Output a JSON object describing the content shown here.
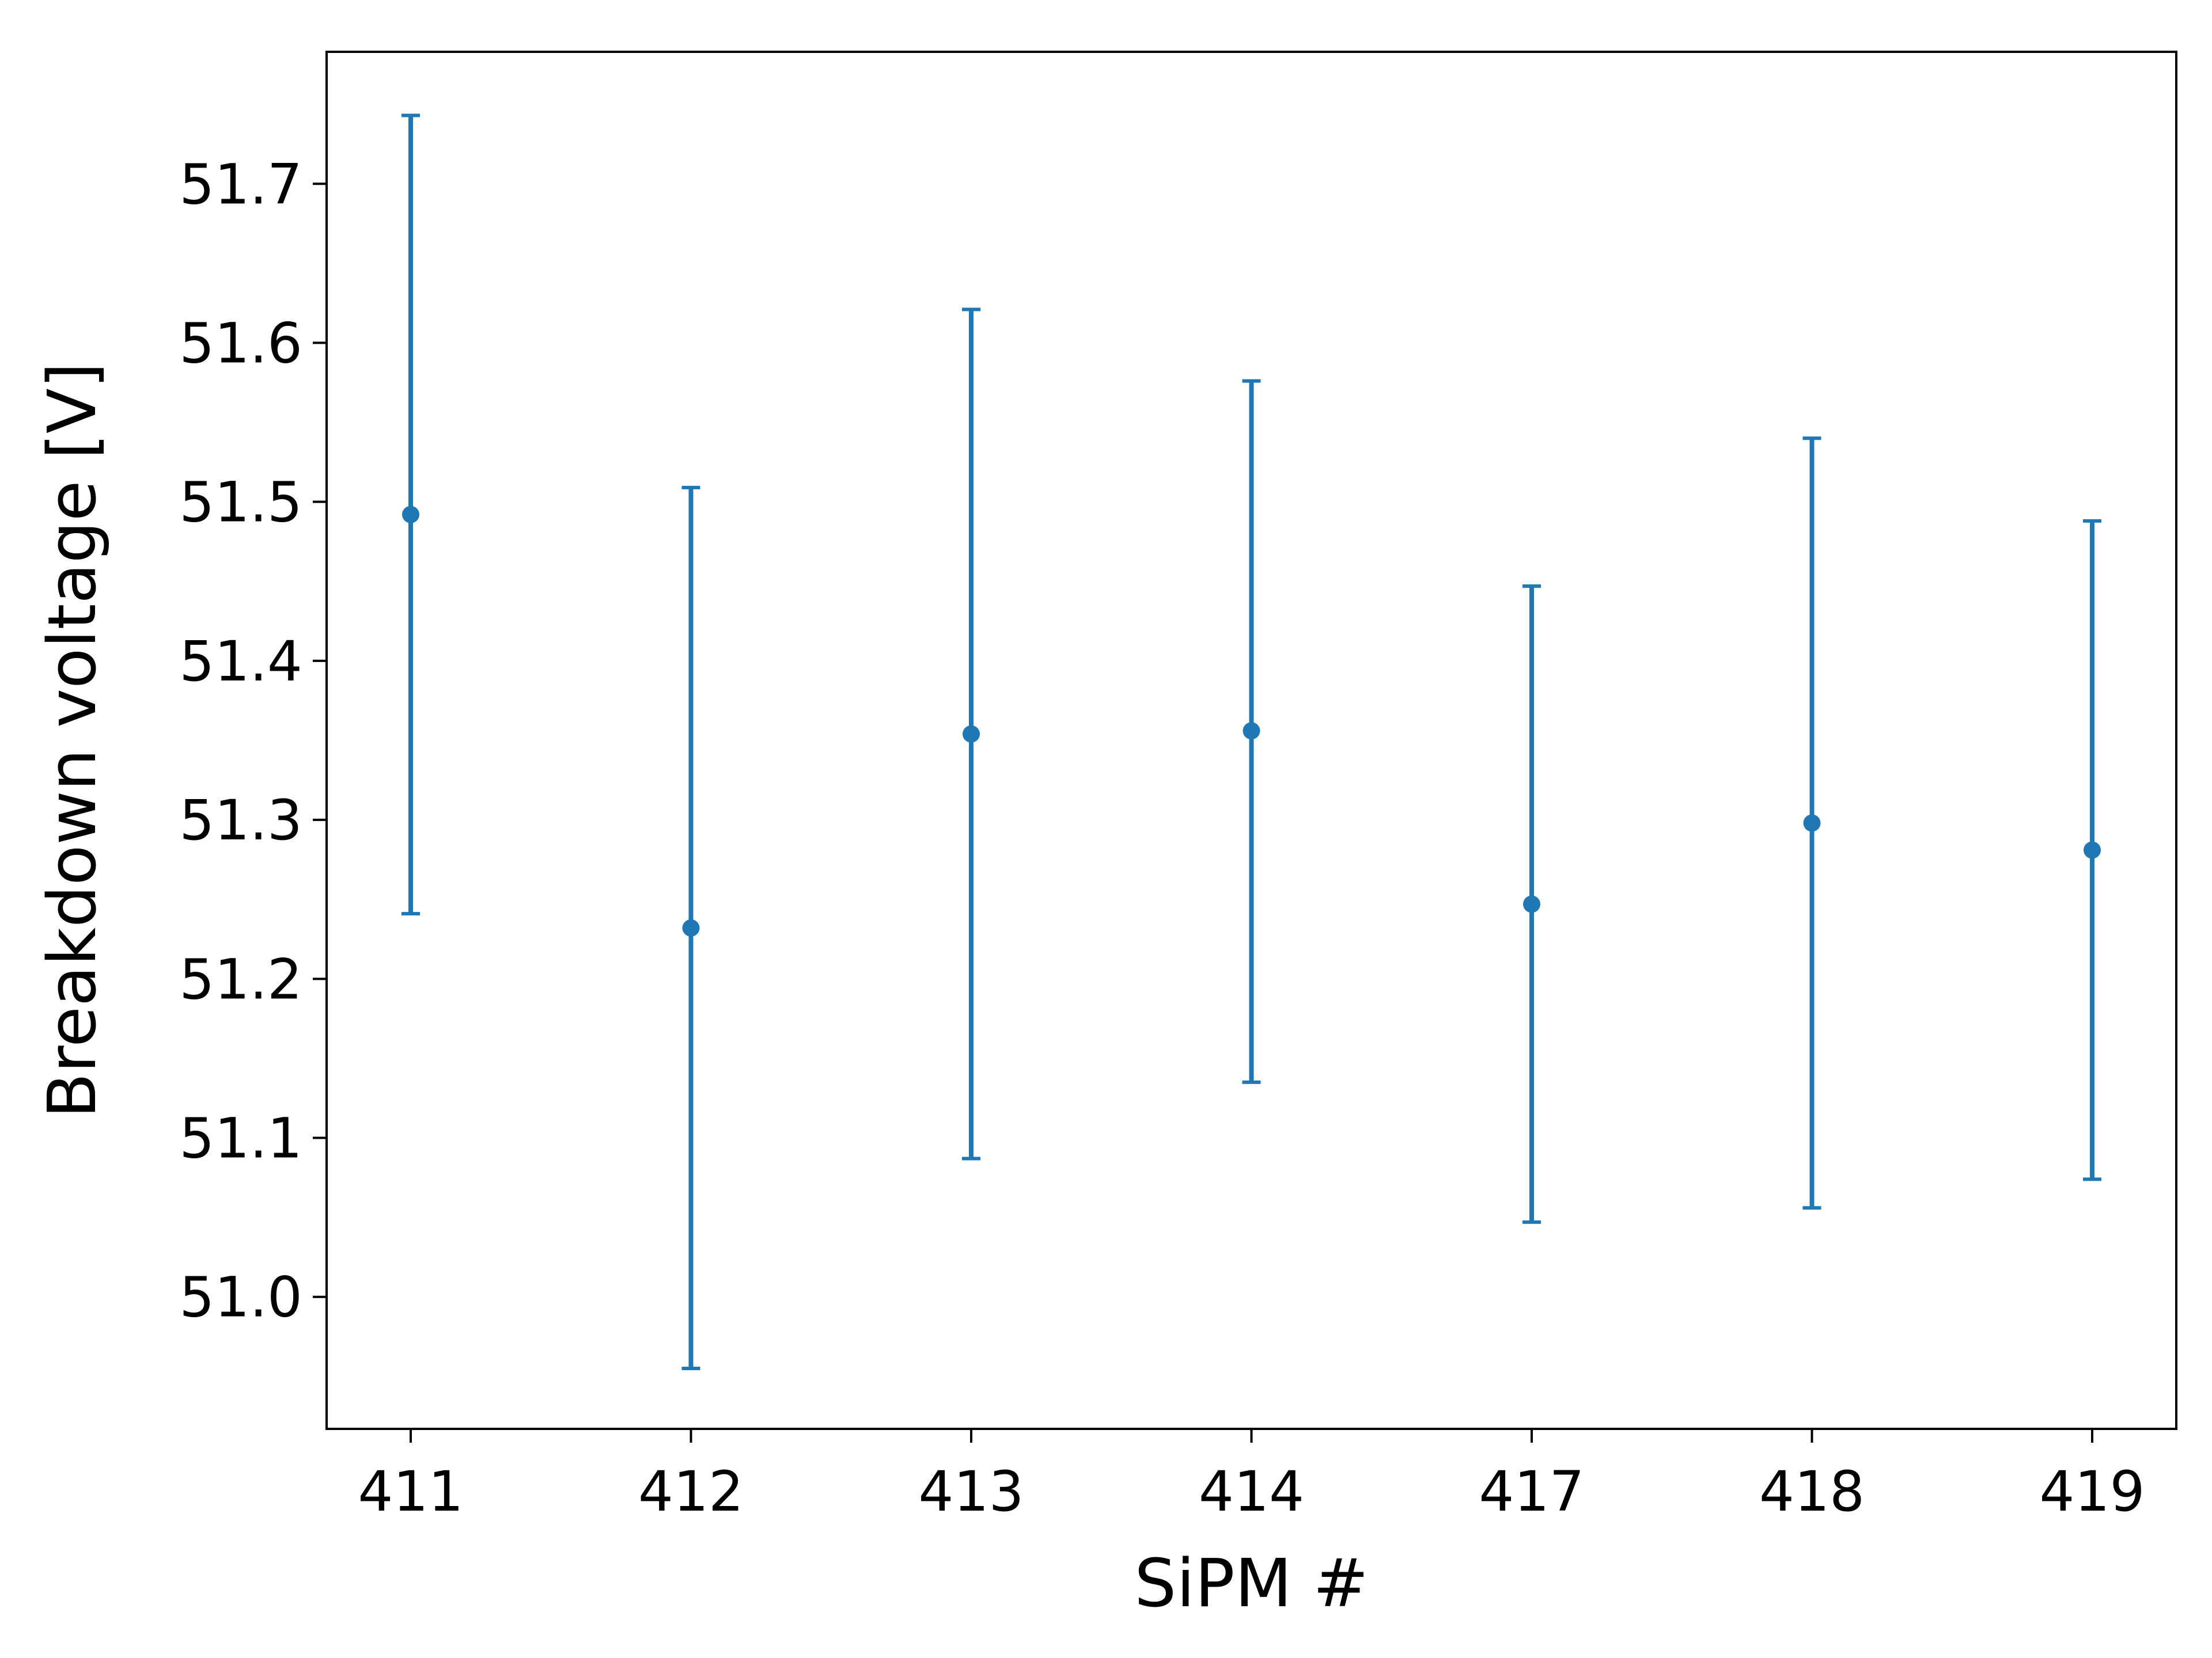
{
  "chart_data": {
    "type": "scatter",
    "title": "",
    "xlabel": "SiPM #",
    "ylabel": "Breakdown voltage [V]",
    "categories": [
      "411",
      "412",
      "413",
      "414",
      "417",
      "418",
      "419"
    ],
    "series": [
      {
        "values": [
          51.492,
          51.232,
          51.354,
          51.356,
          51.247,
          51.298,
          51.281
        ],
        "err_low": [
          51.241,
          50.955,
          51.087,
          51.135,
          51.047,
          51.056,
          51.074
        ],
        "err_high": [
          51.743,
          51.509,
          51.621,
          51.576,
          51.447,
          51.54,
          51.488
        ],
        "color": "#1f77b4"
      }
    ],
    "ylim": [
      50.917,
      51.783
    ],
    "yticks": [
      "51.0",
      "51.1",
      "51.2",
      "51.3",
      "51.4",
      "51.5",
      "51.6",
      "51.7"
    ],
    "grid": false,
    "legend": "none"
  }
}
